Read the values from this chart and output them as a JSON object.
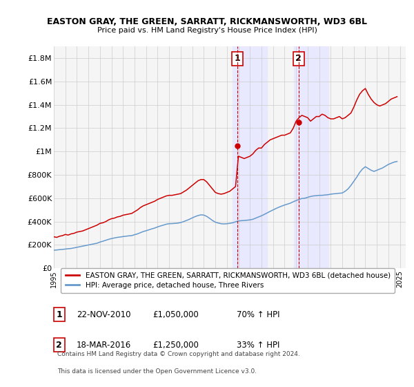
{
  "title": "EASTON GRAY, THE GREEN, SARRATT, RICKMANSWORTH, WD3 6BL",
  "subtitle": "Price paid vs. HM Land Registry's House Price Index (HPI)",
  "ylabel_ticks": [
    "£0",
    "£200K",
    "£400K",
    "£600K",
    "£800K",
    "£1M",
    "£1.2M",
    "£1.4M",
    "£1.6M",
    "£1.8M"
  ],
  "ylabel_values": [
    0,
    200000,
    400000,
    600000,
    800000,
    1000000,
    1200000,
    1400000,
    1600000,
    1800000
  ],
  "ylim": [
    0,
    1900000
  ],
  "xlim_start": 1995.0,
  "xlim_end": 2025.5,
  "xticks": [
    1995,
    1996,
    1997,
    1998,
    1999,
    2000,
    2001,
    2002,
    2003,
    2004,
    2005,
    2006,
    2007,
    2008,
    2009,
    2010,
    2011,
    2012,
    2013,
    2014,
    2015,
    2016,
    2017,
    2018,
    2019,
    2020,
    2021,
    2022,
    2023,
    2024,
    2025
  ],
  "legend_label_red": "EASTON GRAY, THE GREEN, SARRATT, RICKMANSWORTH, WD3 6BL (detached house)",
  "legend_label_blue": "HPI: Average price, detached house, Three Rivers",
  "sale1_label": "1",
  "sale1_date": "22-NOV-2010",
  "sale1_price": "£1,050,000",
  "sale1_hpi": "70% ↑ HPI",
  "sale1_x": 2010.9,
  "sale1_y": 1050000,
  "sale2_label": "2",
  "sale2_date": "18-MAR-2016",
  "sale2_price": "£1,250,000",
  "sale2_hpi": "33% ↑ HPI",
  "sale2_x": 2016.22,
  "sale2_y": 1250000,
  "footnote1": "Contains HM Land Registry data © Crown copyright and database right 2024.",
  "footnote2": "This data is licensed under the Open Government Licence v3.0.",
  "red_color": "#cc0000",
  "blue_color": "#6699cc",
  "grid_color": "#cccccc",
  "bg_color": "#ffffff",
  "plot_bg": "#f5f5f5",
  "highlight_color": "#e8e8ff",
  "line_x": [
    1995.0,
    1995.25,
    1995.5,
    1995.75,
    1996.0,
    1996.25,
    1996.5,
    1996.75,
    1997.0,
    1997.25,
    1997.5,
    1997.75,
    1998.0,
    1998.25,
    1998.5,
    1998.75,
    1999.0,
    1999.25,
    1999.5,
    1999.75,
    2000.0,
    2000.25,
    2000.5,
    2000.75,
    2001.0,
    2001.25,
    2001.5,
    2001.75,
    2002.0,
    2002.25,
    2002.5,
    2002.75,
    2003.0,
    2003.25,
    2003.5,
    2003.75,
    2004.0,
    2004.25,
    2004.5,
    2004.75,
    2005.0,
    2005.25,
    2005.5,
    2005.75,
    2006.0,
    2006.25,
    2006.5,
    2006.75,
    2007.0,
    2007.25,
    2007.5,
    2007.75,
    2008.0,
    2008.25,
    2008.5,
    2008.75,
    2009.0,
    2009.25,
    2009.5,
    2009.75,
    2010.0,
    2010.25,
    2010.5,
    2010.75,
    2011.0,
    2011.25,
    2011.5,
    2011.75,
    2012.0,
    2012.25,
    2012.5,
    2012.75,
    2013.0,
    2013.25,
    2013.5,
    2013.75,
    2014.0,
    2014.25,
    2014.5,
    2014.75,
    2015.0,
    2015.25,
    2015.5,
    2015.75,
    2016.0,
    2016.25,
    2016.5,
    2016.75,
    2017.0,
    2017.25,
    2017.5,
    2017.75,
    2018.0,
    2018.25,
    2018.5,
    2018.75,
    2019.0,
    2019.25,
    2019.5,
    2019.75,
    2020.0,
    2020.25,
    2020.5,
    2020.75,
    2021.0,
    2021.25,
    2021.5,
    2021.75,
    2022.0,
    2022.25,
    2022.5,
    2022.75,
    2023.0,
    2023.25,
    2023.5,
    2023.75,
    2024.0,
    2024.25,
    2024.5,
    2024.75
  ],
  "red_line_data_y": [
    270000,
    265000,
    275000,
    280000,
    290000,
    285000,
    295000,
    300000,
    310000,
    315000,
    320000,
    330000,
    340000,
    350000,
    360000,
    370000,
    385000,
    390000,
    400000,
    415000,
    425000,
    430000,
    440000,
    445000,
    455000,
    460000,
    465000,
    470000,
    485000,
    500000,
    520000,
    535000,
    545000,
    555000,
    565000,
    575000,
    590000,
    600000,
    610000,
    620000,
    625000,
    625000,
    630000,
    635000,
    640000,
    655000,
    670000,
    690000,
    710000,
    730000,
    750000,
    760000,
    760000,
    740000,
    710000,
    680000,
    650000,
    640000,
    635000,
    640000,
    650000,
    660000,
    680000,
    700000,
    960000,
    950000,
    940000,
    950000,
    960000,
    980000,
    1010000,
    1030000,
    1030000,
    1060000,
    1080000,
    1100000,
    1110000,
    1120000,
    1130000,
    1140000,
    1140000,
    1150000,
    1160000,
    1200000,
    1260000,
    1290000,
    1310000,
    1300000,
    1290000,
    1260000,
    1280000,
    1300000,
    1300000,
    1320000,
    1310000,
    1290000,
    1280000,
    1280000,
    1290000,
    1300000,
    1280000,
    1290000,
    1310000,
    1330000,
    1380000,
    1440000,
    1490000,
    1520000,
    1540000,
    1490000,
    1450000,
    1420000,
    1400000,
    1390000,
    1400000,
    1410000,
    1430000,
    1450000,
    1460000,
    1470000,
    1460000
  ],
  "blue_line_data_y": [
    155000,
    157000,
    160000,
    162000,
    165000,
    168000,
    170000,
    175000,
    180000,
    185000,
    190000,
    195000,
    200000,
    205000,
    210000,
    215000,
    225000,
    232000,
    240000,
    248000,
    255000,
    260000,
    265000,
    268000,
    272000,
    275000,
    278000,
    280000,
    288000,
    295000,
    305000,
    315000,
    322000,
    330000,
    338000,
    345000,
    355000,
    363000,
    370000,
    378000,
    382000,
    383000,
    385000,
    387000,
    392000,
    400000,
    410000,
    420000,
    432000,
    443000,
    452000,
    458000,
    456000,
    445000,
    428000,
    410000,
    395000,
    388000,
    382000,
    380000,
    382000,
    385000,
    390000,
    398000,
    405000,
    408000,
    410000,
    412000,
    415000,
    420000,
    430000,
    440000,
    450000,
    462000,
    475000,
    488000,
    500000,
    512000,
    523000,
    533000,
    542000,
    550000,
    558000,
    570000,
    580000,
    590000,
    598000,
    600000,
    608000,
    615000,
    620000,
    622000,
    625000,
    625000,
    628000,
    630000,
    635000,
    638000,
    640000,
    643000,
    645000,
    660000,
    680000,
    710000,
    745000,
    780000,
    820000,
    850000,
    870000,
    855000,
    840000,
    830000,
    840000,
    850000,
    860000,
    875000,
    890000,
    900000,
    910000,
    915000
  ]
}
